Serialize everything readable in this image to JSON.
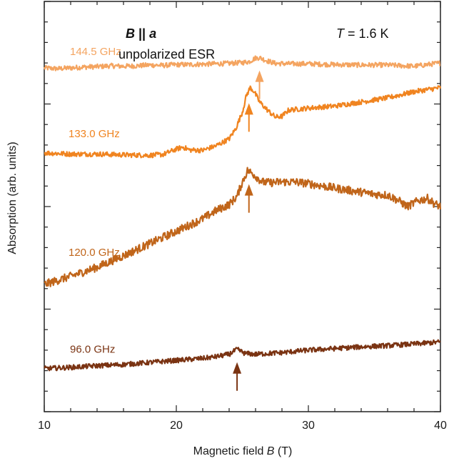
{
  "chart_data": {
    "type": "line",
    "title": "",
    "xlabel": "Magnetic field",
    "xlabel_symbol": "B",
    "xlabel_unit": "(T)",
    "ylabel": "Absorption (arb. units)",
    "xlim": [
      10,
      40
    ],
    "xticks": [
      10,
      20,
      30,
      40
    ],
    "ylim": [
      0,
      1
    ],
    "y_tick_labels": false,
    "grid": false,
    "legend": "none",
    "annotations": {
      "orientation_bold": "B",
      "orientation_mid": " || ",
      "orientation_axis": "a",
      "mode": "unpolarized ESR",
      "temperature_symbol": "T",
      "temperature_value": " = 1.6 K"
    },
    "series": [
      {
        "name": "144.5 GHz",
        "color": "#f4a460",
        "resonance_field": 26.3,
        "points": [
          [
            10,
            0.838
          ],
          [
            11,
            0.836
          ],
          [
            12,
            0.838
          ],
          [
            13,
            0.84
          ],
          [
            14,
            0.841
          ],
          [
            15,
            0.843
          ],
          [
            16,
            0.842
          ],
          [
            17,
            0.843
          ],
          [
            18,
            0.845
          ],
          [
            19,
            0.844
          ],
          [
            20,
            0.846
          ],
          [
            21,
            0.846
          ],
          [
            22,
            0.847
          ],
          [
            23,
            0.848
          ],
          [
            24,
            0.849
          ],
          [
            25,
            0.851
          ],
          [
            25.5,
            0.853
          ],
          [
            26.0,
            0.862
          ],
          [
            26.3,
            0.863
          ],
          [
            26.8,
            0.856
          ],
          [
            27.5,
            0.849
          ],
          [
            28.5,
            0.848
          ],
          [
            30,
            0.848
          ],
          [
            32,
            0.846
          ],
          [
            34,
            0.845
          ],
          [
            36,
            0.845
          ],
          [
            38,
            0.842
          ],
          [
            39,
            0.846
          ],
          [
            40,
            0.85
          ]
        ]
      },
      {
        "name": "133.0 GHz",
        "color": "#f08420",
        "resonance_field": 25.5,
        "points": [
          [
            10,
            0.631
          ],
          [
            12,
            0.628
          ],
          [
            14,
            0.628
          ],
          [
            16,
            0.626
          ],
          [
            18,
            0.625
          ],
          [
            19,
            0.627
          ],
          [
            20,
            0.64
          ],
          [
            20.5,
            0.645
          ],
          [
            21,
            0.638
          ],
          [
            22,
            0.637
          ],
          [
            23,
            0.648
          ],
          [
            24,
            0.665
          ],
          [
            24.5,
            0.69
          ],
          [
            25.0,
            0.73
          ],
          [
            25.3,
            0.77
          ],
          [
            25.6,
            0.79
          ],
          [
            25.9,
            0.78
          ],
          [
            26.3,
            0.755
          ],
          [
            27.0,
            0.732
          ],
          [
            27.5,
            0.718
          ],
          [
            28.0,
            0.72
          ],
          [
            28.5,
            0.735
          ],
          [
            30,
            0.74
          ],
          [
            32,
            0.745
          ],
          [
            34,
            0.755
          ],
          [
            36,
            0.765
          ],
          [
            38,
            0.78
          ],
          [
            40,
            0.79
          ]
        ]
      },
      {
        "name": "120.0 GHz",
        "color": "#c0651a",
        "resonance_field": 25.5,
        "points": [
          [
            10,
            0.31
          ],
          [
            11,
            0.32
          ],
          [
            12,
            0.33
          ],
          [
            14,
            0.352
          ],
          [
            16,
            0.38
          ],
          [
            18,
            0.41
          ],
          [
            20,
            0.44
          ],
          [
            22,
            0.47
          ],
          [
            23,
            0.49
          ],
          [
            24,
            0.505
          ],
          [
            24.6,
            0.525
          ],
          [
            25.0,
            0.56
          ],
          [
            25.4,
            0.588
          ],
          [
            25.8,
            0.58
          ],
          [
            26.5,
            0.56
          ],
          [
            27,
            0.558
          ],
          [
            28,
            0.56
          ],
          [
            29,
            0.56
          ],
          [
            30,
            0.556
          ],
          [
            32,
            0.545
          ],
          [
            34,
            0.535
          ],
          [
            35,
            0.53
          ],
          [
            36,
            0.528
          ],
          [
            36.8,
            0.515
          ],
          [
            37.5,
            0.5
          ],
          [
            38.3,
            0.514
          ],
          [
            39,
            0.52
          ],
          [
            39.5,
            0.508
          ],
          [
            40,
            0.5
          ]
        ]
      },
      {
        "name": "96.0 GHz",
        "color": "#7a3312",
        "resonance_field": 24.6,
        "points": [
          [
            10,
            0.105
          ],
          [
            12,
            0.108
          ],
          [
            14,
            0.112
          ],
          [
            16,
            0.115
          ],
          [
            18,
            0.12
          ],
          [
            20,
            0.125
          ],
          [
            22,
            0.13
          ],
          [
            23,
            0.134
          ],
          [
            24,
            0.14
          ],
          [
            24.6,
            0.152
          ],
          [
            25.2,
            0.142
          ],
          [
            26,
            0.14
          ],
          [
            28,
            0.144
          ],
          [
            30,
            0.15
          ],
          [
            32,
            0.154
          ],
          [
            34,
            0.158
          ],
          [
            36,
            0.161
          ],
          [
            38,
            0.165
          ],
          [
            40,
            0.17
          ]
        ]
      }
    ]
  }
}
